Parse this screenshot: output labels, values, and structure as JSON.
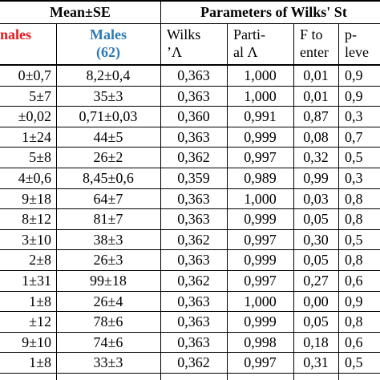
{
  "table": {
    "header": {
      "group1": "Mean±SE",
      "group2": "Parameters of Wilks' St"
    },
    "subheader": [
      [
        "nales"
      ],
      [
        "Males",
        "(62)"
      ],
      [
        "Wilks",
        "’Λ"
      ],
      [
        "Parti-",
        "al Λ"
      ],
      [
        "F to",
        "enter"
      ],
      [
        "p-",
        "leve"
      ]
    ],
    "rows": [
      [
        "0±0,7",
        "8,2±0,4",
        "0,363",
        "1,000",
        "0,01",
        "0,9"
      ],
      [
        "5±7",
        "35±3",
        "0,363",
        "1,000",
        "0,01",
        "0,9"
      ],
      [
        "±0,02",
        "0,71±0,03",
        "0,360",
        "0,991",
        "0,87",
        "0,3"
      ],
      [
        "1±24",
        "44±5",
        "0,363",
        "0,999",
        "0,08",
        "0,7"
      ],
      [
        "5±8",
        "26±2",
        "0,362",
        "0,997",
        "0,32",
        "0,5"
      ],
      [
        "4±0,6",
        "8,45±0,6",
        "0,359",
        "0,989",
        "0,99",
        "0,3"
      ],
      [
        "9±18",
        "64±7",
        "0,363",
        "1,000",
        "0,03",
        "0,8"
      ],
      [
        "8±12",
        "81±7",
        "0,363",
        "0,999",
        "0,05",
        "0,8"
      ],
      [
        "3±10",
        "38±3",
        "0,362",
        "0,997",
        "0,30",
        "0,5"
      ],
      [
        "2±8",
        "26±3",
        "0,363",
        "0,999",
        "0,05",
        "0,8"
      ],
      [
        "1±31",
        "99±18",
        "0,362",
        "0,997",
        "0,27",
        "0,6"
      ],
      [
        "1±8",
        "26±4",
        "0,363",
        "1,000",
        "0,00",
        "0,9"
      ],
      [
        "±12",
        "78±6",
        "0,363",
        "0,999",
        "0,05",
        "0,8"
      ],
      [
        "9±10",
        "74±6",
        "0,363",
        "0,998",
        "0,18",
        "0,6"
      ],
      [
        "1±8",
        "33±3",
        "0,362",
        "0,997",
        "0,31",
        "0,5"
      ]
    ]
  }
}
